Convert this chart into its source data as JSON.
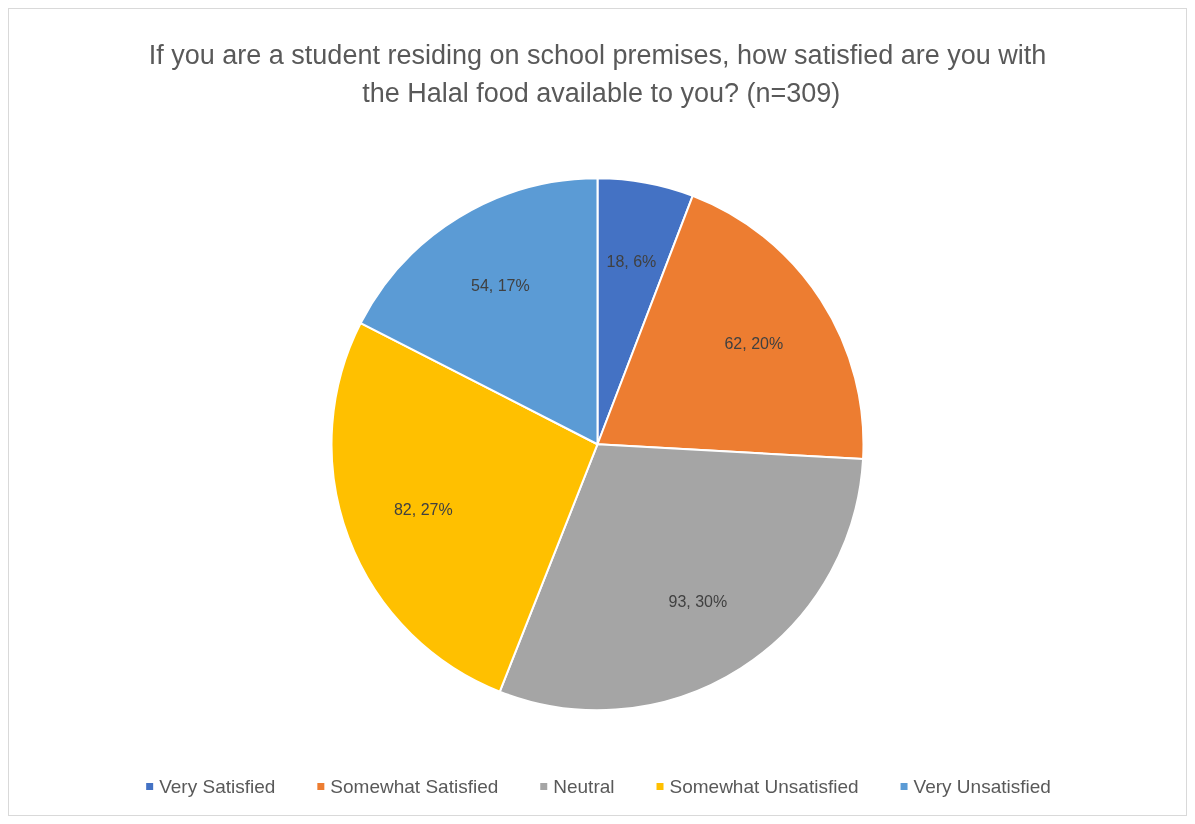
{
  "chart_data": {
    "type": "pie",
    "title": "If you are a student residing on school premises, how satisfied are you with the Halal food available to you? (n=309)",
    "categories": [
      "Very Satisfied",
      "Somewhat Satisfied",
      "Neutral",
      "Somewhat Unsatisfied",
      "Very Unsatisfied"
    ],
    "values": [
      18,
      62,
      93,
      82,
      54
    ],
    "colors": [
      "#4472c4",
      "#ed7d31",
      "#a5a5a5",
      "#ffc000",
      "#5b9bd5"
    ],
    "value_labels": [
      "18, 6%",
      "62, 20%",
      "93, 30%",
      "82, 27%",
      "54, 17%"
    ],
    "legend": "bottom"
  }
}
